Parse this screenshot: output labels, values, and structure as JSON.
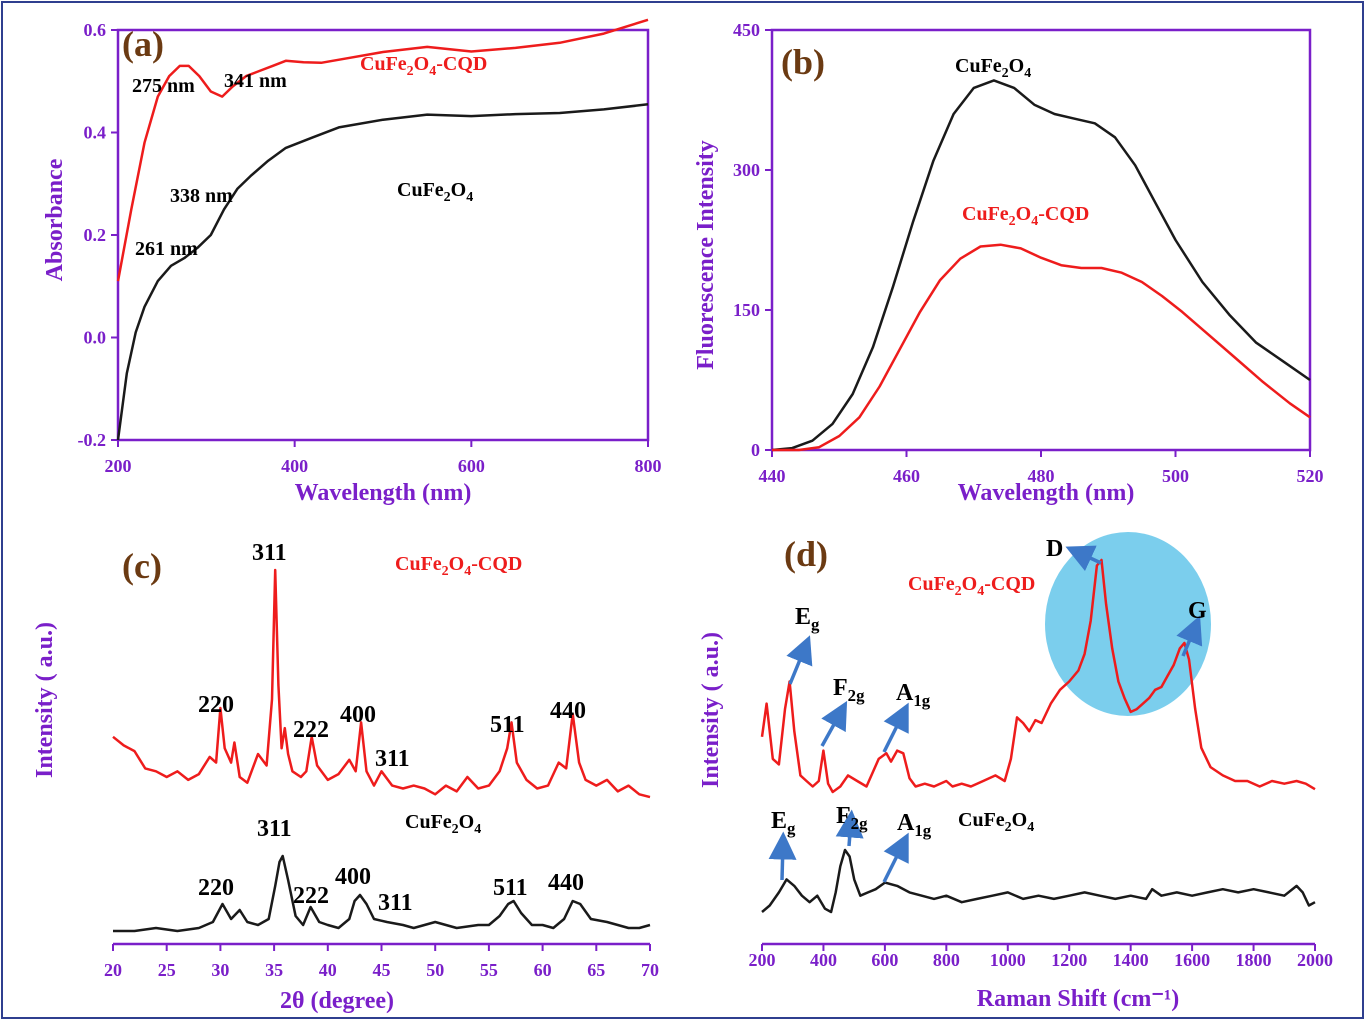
{
  "colors": {
    "axis": "#7a1fc9",
    "series_red": "#ee1c1c",
    "series_black": "#1a1a1a",
    "panel_label": "#6b3a12",
    "arrow": "#3d78c8",
    "circle": "#64c6ea",
    "frame": "#2f3f8f"
  },
  "chart_data": [
    {
      "panel": "(a)",
      "type": "line",
      "xlabel": "Wavelength (nm)",
      "ylabel": "Absorbance",
      "xlim": [
        200,
        800
      ],
      "ylim": [
        -0.2,
        0.6
      ],
      "xticks": [
        "200",
        "400",
        "600",
        "800"
      ],
      "yticks": [
        "-0.2",
        "0.0",
        "0.2",
        "0.4",
        "0.6"
      ],
      "series": [
        {
          "name": "CuFe2O4-CQD",
          "label_main": "CuFe",
          "label_sub1": "2",
          "label_mid": "O",
          "label_sub2": "4",
          "label_tail": "-CQD",
          "color": "#ee1c1c",
          "x": [
            200,
            215,
            230,
            245,
            258,
            270,
            280,
            292,
            305,
            318,
            330,
            345,
            360,
            375,
            390,
            410,
            430,
            460,
            500,
            550,
            600,
            650,
            700,
            750,
            800
          ],
          "y": [
            0.11,
            0.25,
            0.38,
            0.47,
            0.51,
            0.53,
            0.53,
            0.51,
            0.48,
            0.47,
            0.49,
            0.51,
            0.52,
            0.53,
            0.54,
            0.537,
            0.536,
            0.545,
            0.557,
            0.567,
            0.558,
            0.565,
            0.575,
            0.593,
            0.62
          ]
        },
        {
          "name": "CuFe2O4",
          "label_main": "CuFe",
          "label_sub1": "2",
          "label_mid": "O",
          "label_sub2": "4",
          "label_tail": "",
          "color": "#1a1a1a",
          "x": [
            200,
            210,
            220,
            230,
            245,
            260,
            275,
            290,
            305,
            320,
            335,
            350,
            370,
            390,
            420,
            450,
            500,
            550,
            600,
            650,
            700,
            750,
            800
          ],
          "y": [
            -0.2,
            -0.07,
            0.01,
            0.06,
            0.11,
            0.14,
            0.155,
            0.175,
            0.2,
            0.25,
            0.29,
            0.315,
            0.345,
            0.37,
            0.39,
            0.41,
            0.425,
            0.435,
            0.432,
            0.436,
            0.438,
            0.445,
            0.455
          ]
        }
      ],
      "annotations": [
        "275 nm",
        "341 nm",
        "338 nm",
        "261 nm"
      ]
    },
    {
      "panel": "(b)",
      "type": "line",
      "xlabel": "Wavelength (nm)",
      "ylabel": "Fluorescence Intensity",
      "xlim": [
        440,
        520
      ],
      "ylim": [
        0,
        450
      ],
      "xticks": [
        "440",
        "460",
        "480",
        "500",
        "520"
      ],
      "yticks": [
        "0",
        "150",
        "300",
        "450"
      ],
      "series": [
        {
          "name": "CuFe2O4",
          "color": "#1a1a1a",
          "x": [
            440,
            443,
            446,
            449,
            452,
            455,
            458,
            461,
            464,
            467,
            470,
            473,
            476,
            479,
            482,
            485,
            488,
            491,
            494,
            497,
            500,
            504,
            508,
            512,
            516,
            520
          ],
          "y": [
            0,
            2,
            10,
            28,
            60,
            110,
            175,
            245,
            310,
            360,
            388,
            396,
            388,
            370,
            360,
            355,
            350,
            335,
            305,
            265,
            225,
            180,
            145,
            115,
            95,
            75
          ]
        },
        {
          "name": "CuFe2O4-CQD",
          "color": "#ee1c1c",
          "x": [
            440,
            444,
            447,
            450,
            453,
            456,
            459,
            462,
            465,
            468,
            471,
            474,
            477,
            480,
            483,
            486,
            489,
            492,
            495,
            498,
            501,
            505,
            509,
            513,
            517,
            520
          ],
          "y": [
            0,
            0,
            3,
            15,
            35,
            68,
            108,
            148,
            182,
            205,
            218,
            220,
            216,
            206,
            198,
            195,
            195,
            190,
            180,
            165,
            148,
            123,
            98,
            73,
            50,
            35
          ]
        }
      ]
    },
    {
      "panel": "(c)",
      "type": "line",
      "xlabel": "2θ (degree)",
      "ylabel": "Intensity ( a.u.)",
      "xlim": [
        20,
        70
      ],
      "xticks": [
        "20",
        "25",
        "30",
        "35",
        "40",
        "45",
        "50",
        "55",
        "60",
        "65",
        "70"
      ],
      "series": [
        {
          "name": "CuFe2O4-CQD",
          "color": "#ee1c1c",
          "x": [
            20,
            21,
            22,
            23,
            24,
            25,
            26,
            27,
            28,
            29,
            29.6,
            30,
            30.4,
            31,
            31.3,
            31.8,
            32.5,
            33.5,
            34.3,
            34.8,
            35.1,
            35.4,
            35.7,
            36.0,
            36.3,
            36.7,
            37.5,
            38.0,
            38.5,
            39.0,
            40,
            41,
            42,
            42.6,
            43.1,
            43.6,
            44.3,
            45,
            46,
            47,
            48,
            49,
            50,
            51,
            52,
            53,
            54,
            55,
            56,
            56.7,
            57.1,
            57.6,
            58.5,
            59.5,
            60.5,
            61.5,
            62.2,
            62.8,
            63.4,
            64,
            65,
            66,
            67,
            68,
            69,
            70
          ],
          "y": [
            0.42,
            0.39,
            0.37,
            0.31,
            0.3,
            0.28,
            0.3,
            0.27,
            0.29,
            0.35,
            0.33,
            0.52,
            0.38,
            0.33,
            0.4,
            0.28,
            0.26,
            0.36,
            0.32,
            0.55,
            1.0,
            0.6,
            0.38,
            0.45,
            0.36,
            0.3,
            0.28,
            0.3,
            0.42,
            0.32,
            0.27,
            0.29,
            0.34,
            0.3,
            0.47,
            0.3,
            0.25,
            0.3,
            0.25,
            0.24,
            0.25,
            0.24,
            0.22,
            0.25,
            0.23,
            0.28,
            0.24,
            0.25,
            0.3,
            0.38,
            0.47,
            0.33,
            0.27,
            0.24,
            0.25,
            0.33,
            0.31,
            0.5,
            0.33,
            0.27,
            0.25,
            0.27,
            0.23,
            0.25,
            0.22,
            0.21
          ]
        },
        {
          "name": "CuFe2O4",
          "color": "#1a1a1a",
          "x": [
            20,
            22,
            24,
            26,
            28,
            29.3,
            30.2,
            31,
            31.8,
            32.5,
            33.5,
            34.5,
            35.1,
            35.5,
            35.8,
            36.3,
            37,
            37.7,
            38.4,
            39.2,
            40,
            41,
            42,
            42.5,
            43.0,
            43.6,
            44.3,
            45.5,
            47,
            48,
            49,
            50,
            52,
            54,
            55,
            56,
            56.8,
            57.3,
            58,
            59,
            60,
            61,
            62,
            62.8,
            63.5,
            64.5,
            66,
            67,
            68,
            69,
            70
          ],
          "y": [
            0.15,
            0.15,
            0.16,
            0.15,
            0.16,
            0.18,
            0.24,
            0.19,
            0.22,
            0.18,
            0.17,
            0.19,
            0.3,
            0.38,
            0.4,
            0.32,
            0.2,
            0.17,
            0.23,
            0.18,
            0.17,
            0.16,
            0.19,
            0.25,
            0.27,
            0.24,
            0.19,
            0.18,
            0.17,
            0.16,
            0.17,
            0.18,
            0.16,
            0.17,
            0.17,
            0.2,
            0.24,
            0.25,
            0.21,
            0.17,
            0.17,
            0.16,
            0.19,
            0.25,
            0.24,
            0.19,
            0.18,
            0.17,
            0.16,
            0.16,
            0.17
          ]
        }
      ],
      "annotations_cqd": [
        "311",
        "220",
        "222",
        "400",
        "311",
        "511",
        "440"
      ],
      "annotations_bare": [
        "311",
        "220",
        "222",
        "400",
        "311",
        "511",
        "440"
      ],
      "series_labels": [
        "CuFe2O4-CQD",
        "CuFe2O4"
      ]
    },
    {
      "panel": "(d)",
      "type": "line",
      "xlabel": "Raman Shift (cm⁻¹)",
      "ylabel": "Intensity ( a.u.)",
      "xlim": [
        200,
        2000
      ],
      "xticks": [
        "200",
        "400",
        "600",
        "800",
        "1000",
        "1200",
        "1400",
        "1600",
        "1800",
        "2000"
      ],
      "series": [
        {
          "name": "CuFe2O4-CQD",
          "color": "#ee1c1c",
          "x": [
            200,
            215,
            235,
            255,
            275,
            290,
            305,
            325,
            345,
            365,
            385,
            400,
            415,
            430,
            455,
            480,
            510,
            540,
            580,
            605,
            620,
            640,
            660,
            680,
            700,
            730,
            760,
            800,
            820,
            850,
            880,
            920,
            960,
            990,
            1010,
            1030,
            1050,
            1070,
            1090,
            1110,
            1140,
            1170,
            1200,
            1230,
            1250,
            1270,
            1290,
            1305,
            1320,
            1340,
            1360,
            1380,
            1400,
            1420,
            1440,
            1460,
            1480,
            1500,
            1520,
            1540,
            1560,
            1575,
            1590,
            1610,
            1630,
            1660,
            1700,
            1740,
            1780,
            1820,
            1860,
            1900,
            1940,
            1970,
            2000
          ],
          "y": [
            0.38,
            0.5,
            0.3,
            0.28,
            0.48,
            0.58,
            0.4,
            0.24,
            0.22,
            0.2,
            0.22,
            0.33,
            0.21,
            0.18,
            0.2,
            0.24,
            0.22,
            0.2,
            0.3,
            0.32,
            0.29,
            0.33,
            0.32,
            0.23,
            0.2,
            0.21,
            0.2,
            0.22,
            0.2,
            0.21,
            0.2,
            0.22,
            0.24,
            0.22,
            0.3,
            0.45,
            0.43,
            0.4,
            0.44,
            0.43,
            0.5,
            0.55,
            0.58,
            0.62,
            0.68,
            0.8,
            1.0,
            1.02,
            0.86,
            0.7,
            0.58,
            0.52,
            0.47,
            0.48,
            0.5,
            0.52,
            0.55,
            0.56,
            0.6,
            0.64,
            0.7,
            0.72,
            0.66,
            0.48,
            0.34,
            0.27,
            0.24,
            0.22,
            0.22,
            0.2,
            0.22,
            0.21,
            0.22,
            0.21,
            0.19
          ]
        },
        {
          "name": "CuFe2O4",
          "color": "#1a1a1a",
          "x": [
            200,
            225,
            255,
            280,
            305,
            330,
            355,
            380,
            405,
            425,
            440,
            455,
            470,
            485,
            500,
            520,
            545,
            570,
            600,
            640,
            680,
            720,
            760,
            800,
            850,
            900,
            950,
            1000,
            1050,
            1100,
            1150,
            1200,
            1250,
            1300,
            1350,
            1400,
            1450,
            1470,
            1500,
            1550,
            1600,
            1650,
            1700,
            1750,
            1800,
            1850,
            1900,
            1940,
            1960,
            1980,
            2000
          ],
          "y": [
            0.04,
            0.06,
            0.1,
            0.14,
            0.12,
            0.09,
            0.07,
            0.09,
            0.05,
            0.04,
            0.1,
            0.18,
            0.23,
            0.21,
            0.14,
            0.09,
            0.1,
            0.11,
            0.13,
            0.12,
            0.1,
            0.09,
            0.08,
            0.09,
            0.07,
            0.08,
            0.09,
            0.1,
            0.08,
            0.09,
            0.08,
            0.09,
            0.1,
            0.09,
            0.08,
            0.09,
            0.08,
            0.11,
            0.09,
            0.1,
            0.09,
            0.1,
            0.11,
            0.1,
            0.11,
            0.1,
            0.09,
            0.12,
            0.1,
            0.06,
            0.07
          ]
        }
      ],
      "annotations": [
        "D",
        "G",
        "E",
        "g",
        "F",
        "2g",
        "A",
        "1g",
        "E",
        "g",
        "F",
        "2g",
        "A",
        "1g"
      ]
    }
  ],
  "text": {
    "a_panel": "(a)",
    "b_panel": "(b)",
    "c_panel": "(c)",
    "d_panel": "(d)",
    "a_275": "275 nm",
    "a_341": "341 nm",
    "a_338": "338 nm",
    "a_261": "261 nm",
    "c_top_311": "311",
    "c_top_220": "220",
    "c_top_222": "222",
    "c_top_400": "400",
    "c_top_311b": "311",
    "c_top_511": "511",
    "c_top_440": "440",
    "c_bot_311": "311",
    "c_bot_220": "220",
    "c_bot_222": "222",
    "c_bot_400": "400",
    "c_bot_311b": "311",
    "c_bot_511": "511",
    "c_bot_440": "440",
    "d_D": "D",
    "d_G": "G",
    "d_Eg_main": "E",
    "d_Eg_sub": "g",
    "d_F2g_main": "F",
    "d_F2g_sub": "2g",
    "d_A1g_main": "A",
    "d_A1g_sub": "1g",
    "cu": "CuFe",
    "two": "2",
    "o": "O",
    "four": "4",
    "cqd": "-CQD"
  }
}
